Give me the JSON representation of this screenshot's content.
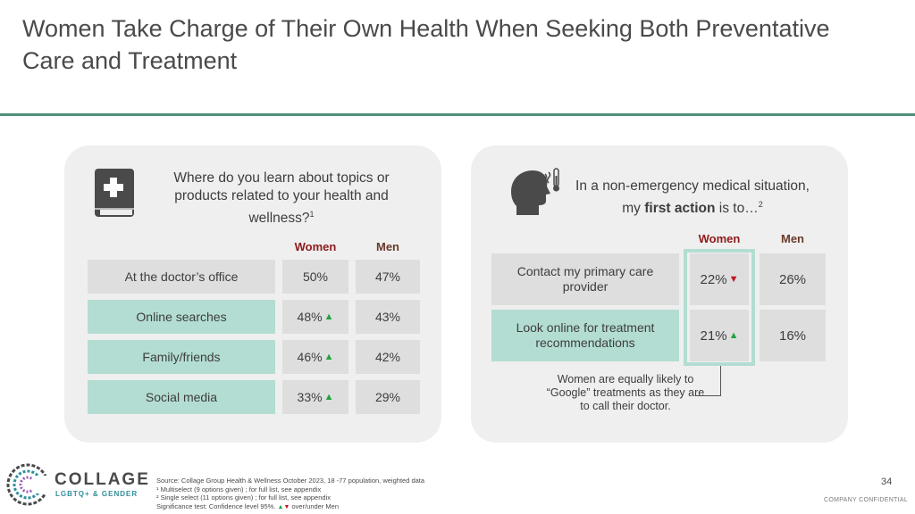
{
  "title": "Women Take Charge of Their Own Health When Seeking Both Preventative Care and Treatment",
  "left_panel": {
    "icon": "medical-book-icon",
    "question": "Where do you learn about topics or products related to your health and wellness?",
    "question_note": "1",
    "columns": [
      "Women",
      "Men"
    ],
    "rows": [
      {
        "label": "At the doctor’s office",
        "women": "50%",
        "women_sig": "",
        "men": "47%",
        "style": "grey"
      },
      {
        "label": "Online searches",
        "women": "48%",
        "women_sig": "▲",
        "men": "43%",
        "style": "teal"
      },
      {
        "label": "Family/friends",
        "women": "46%",
        "women_sig": "▲",
        "men": "42%",
        "style": "teal"
      },
      {
        "label": "Social media",
        "women": "33%",
        "women_sig": "▲",
        "men": "29%",
        "style": "teal"
      }
    ]
  },
  "right_panel": {
    "icon": "sick-person-thermometer-icon",
    "question_part1": "In a non-emergency medical situation, my ",
    "question_bold": "first action",
    "question_part2": " is to…",
    "question_note": "2",
    "columns": [
      "Women",
      "Men"
    ],
    "rows": [
      {
        "label": "Contact my primary care provider",
        "women": "22%",
        "women_sig": "▼",
        "men": "26%",
        "style": "grey"
      },
      {
        "label": "Look online for treatment recommendations",
        "women": "21%",
        "women_sig": "▲",
        "men": "16%",
        "style": "teal"
      }
    ],
    "callout": "Women are equally likely to “Google” treatments as they are to call their doctor."
  },
  "footnotes": {
    "source": "Source: Collage Group Health & Wellness October 2023, 18 -77 population, weighted data",
    "note1": "¹ Multiselect (9 options given) ; for full list, see appendix",
    "note2": "² Single select (11 options given) ; for full list, see appendix",
    "sig_prefix": "Significance test: Confidence level 95%.",
    "sig_up": "▲",
    "sig_down": "▼",
    "sig_suffix": "over/under Men"
  },
  "logo": {
    "name": "COLLAGE",
    "sub": "LGBTQ+ & GENDER"
  },
  "page_number": "34",
  "confidential": "COMPANY CONFIDENTIAL",
  "colors": {
    "accent": "#4f8f7c",
    "teal_fill": "#b3ddd2",
    "grey_fill": "#dedede",
    "women_header": "#8e1b1b",
    "up": "#22a33f",
    "down": "#c0171c"
  }
}
